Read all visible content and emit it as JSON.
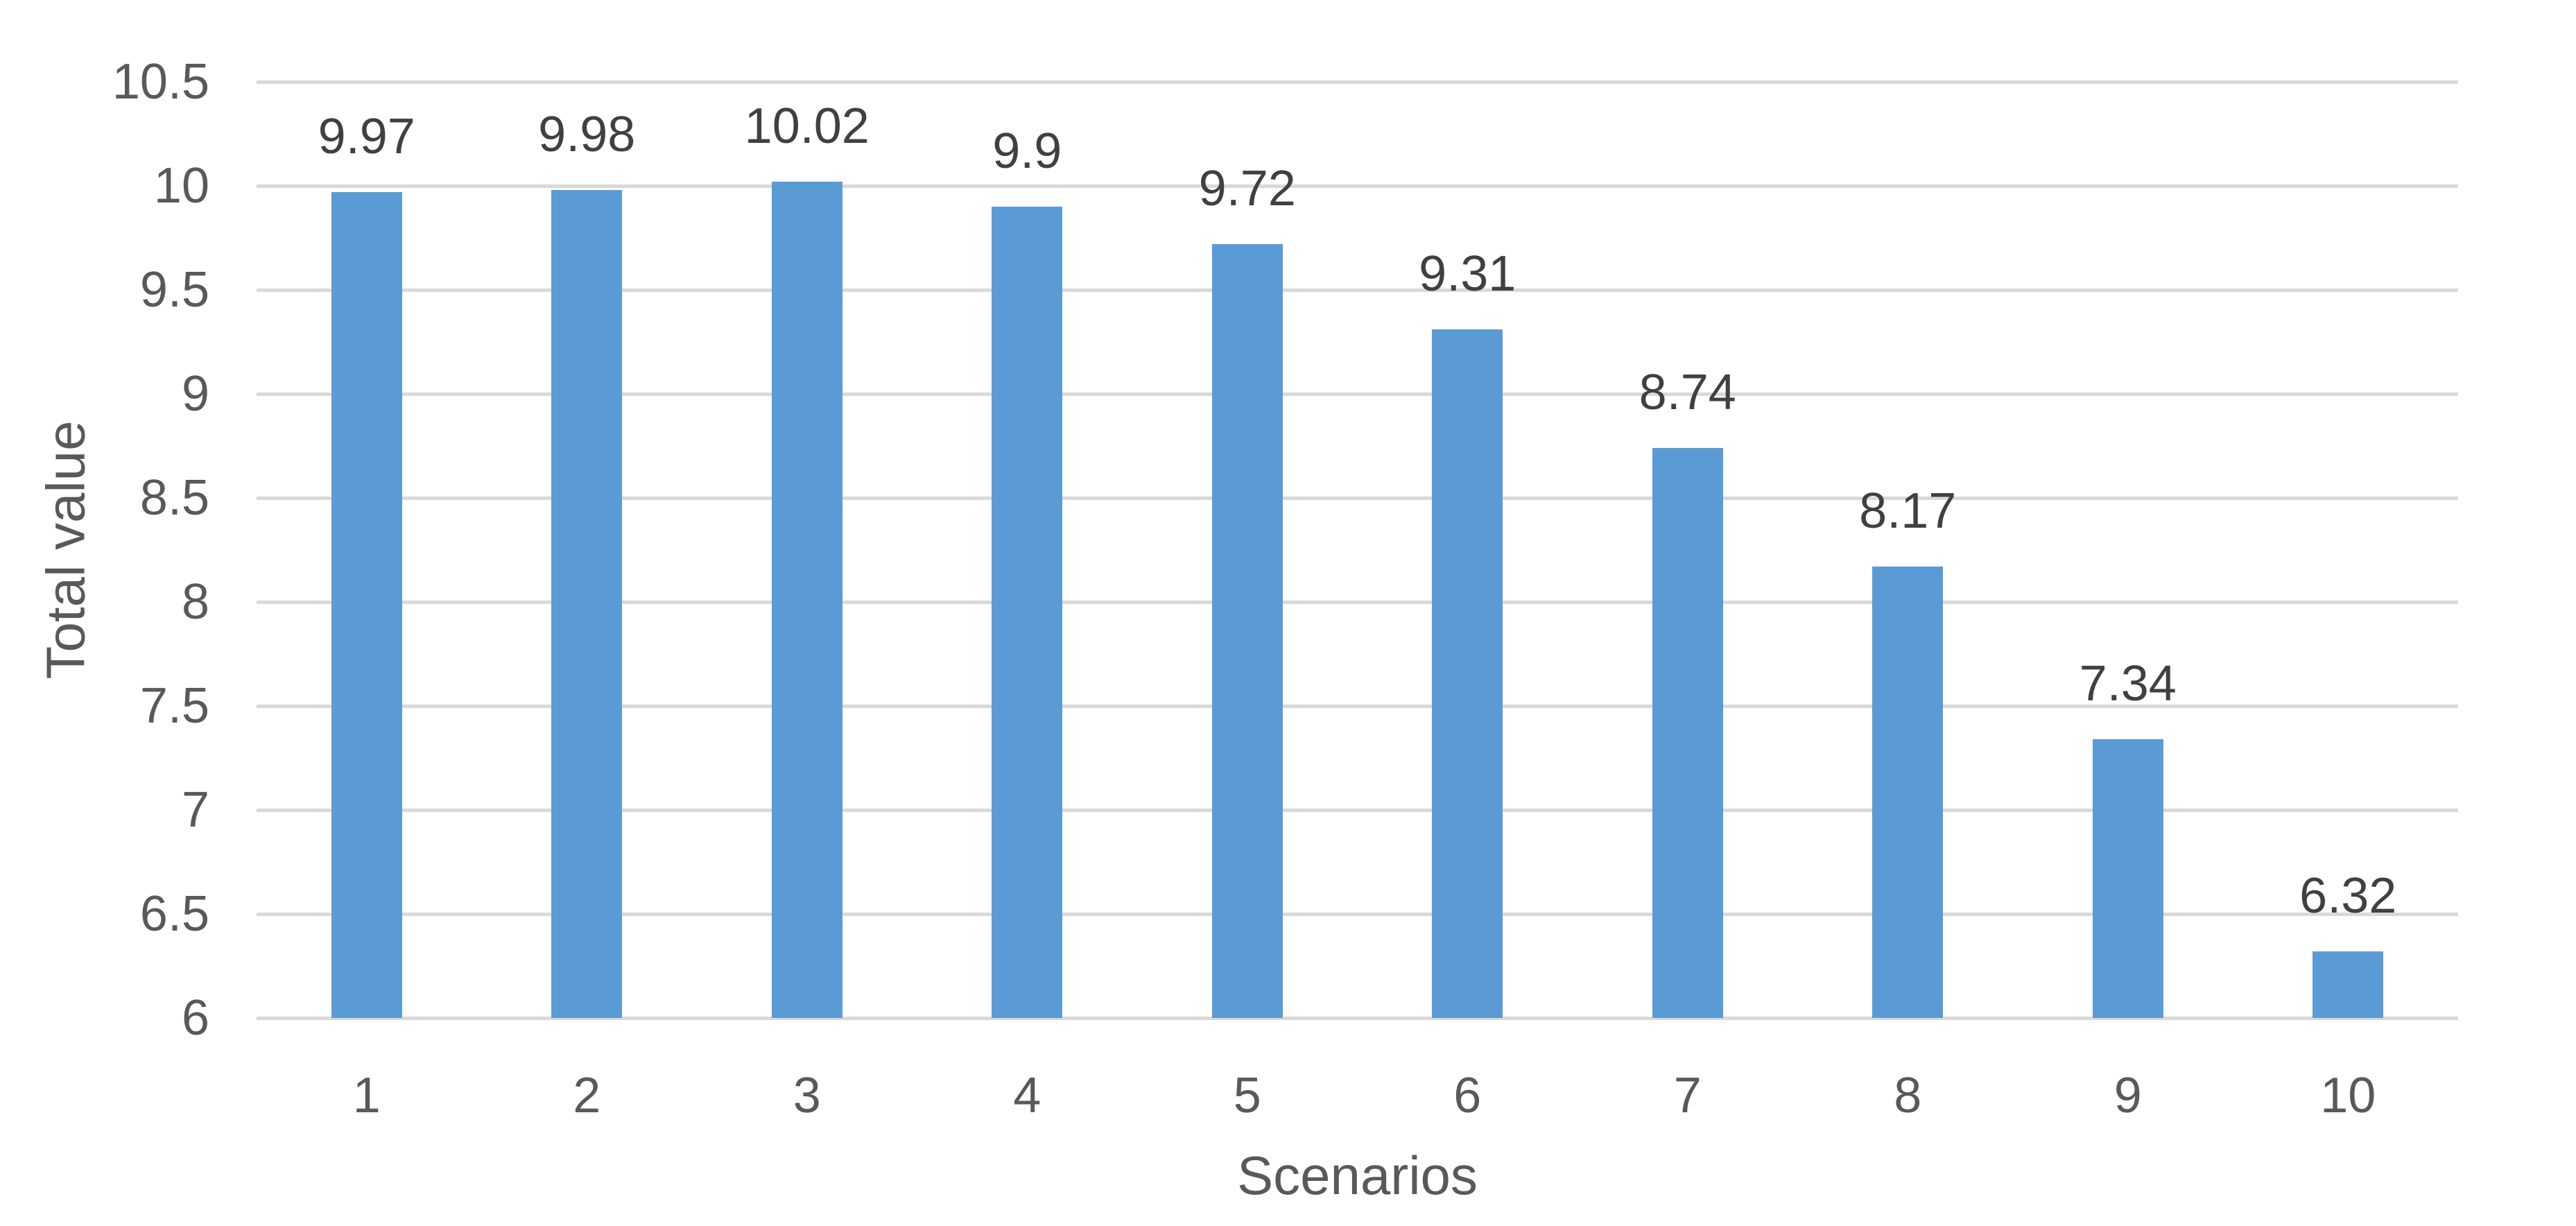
{
  "chart_data": {
    "type": "bar",
    "title": "",
    "categories": [
      "1",
      "2",
      "3",
      "4",
      "5",
      "6",
      "7",
      "8",
      "9",
      "10"
    ],
    "values": [
      9.97,
      9.98,
      10.02,
      9.9,
      9.72,
      9.31,
      8.74,
      8.17,
      7.34,
      6.32
    ],
    "data_labels": [
      "9.97",
      "9.98",
      "10.02",
      "9.9",
      "9.72",
      "9.31",
      "8.74",
      "8.17",
      "7.34",
      "6.32"
    ],
    "xlabel": "Scenarios",
    "ylabel": "Total value",
    "ylim": [
      6,
      10.5
    ],
    "ytick_step": 0.5,
    "ytick_labels": [
      "6",
      "6.5",
      "7",
      "7.5",
      "8",
      "8.5",
      "9",
      "9.5",
      "10",
      "10.5"
    ],
    "grid": true,
    "legend_position": "none",
    "colors": {
      "bar": "#5B9BD5",
      "gridline": "#D9D9D9",
      "axis_text": "#595959",
      "data_label": "#404040",
      "background": "#FFFFFF"
    }
  }
}
